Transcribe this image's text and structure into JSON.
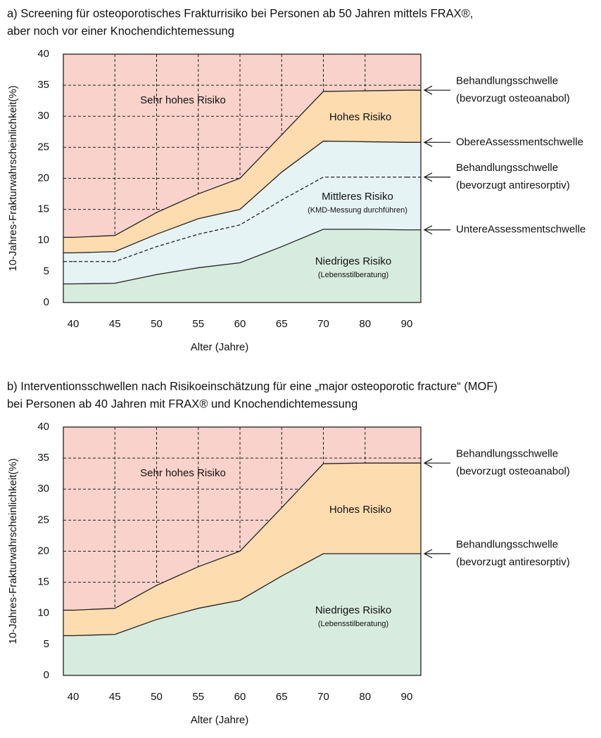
{
  "chart_data": [
    {
      "type": "area",
      "title": [
        "a) Screening für osteoporotisches Frakturrisiko bei Personen ab 50 Jahren mittels FRAX®,",
        "aber noch vor einer Knochendichtemessung"
      ],
      "ylabel": "10-Jahres-Frakturwahrscheinlichkeit(%)",
      "xlabel": "Alter (Jahre)",
      "categories": [
        "40",
        "45",
        "50",
        "55",
        "60",
        "65",
        "70",
        "80",
        "90"
      ],
      "ylim": [
        0,
        40
      ],
      "yticks": [
        0,
        5,
        10,
        15,
        20,
        25,
        30,
        35,
        40
      ],
      "grid": true,
      "background": "#f9d2cb",
      "series": [
        {
          "name": [
            "Behandlungsschwelle",
            "(bevorzugt osteoanabol)"
          ],
          "color": "#222",
          "fill": "#fddcb0",
          "dashed": false,
          "values": [
            10.5,
            10.8,
            14.5,
            17.5,
            20,
            27,
            34,
            34.1,
            34.2
          ]
        },
        {
          "name": [
            "ObereAssessmentschwelle"
          ],
          "color": "#222",
          "fill": "#e6f3f5",
          "dashed": false,
          "values": [
            8,
            8.2,
            11,
            13.5,
            15,
            21,
            26,
            25.9,
            25.8
          ]
        },
        {
          "name": [
            "Behandlungsschwelle",
            "(bevorzugt antiresorptiv)"
          ],
          "color": "#222",
          "fill": null,
          "dashed": true,
          "values": [
            6.6,
            6.6,
            9,
            11,
            12.5,
            16.5,
            20.2,
            20.2,
            20.2
          ]
        },
        {
          "name": [
            "UntereAssessmentschwelle"
          ],
          "color": "#222",
          "fill": "#d8ebdf",
          "dashed": false,
          "values": [
            3,
            3.1,
            4.5,
            5.6,
            6.4,
            9,
            11.8,
            11.8,
            11.7
          ]
        }
      ],
      "regions": [
        {
          "label": "Sehr hohes Risiko"
        },
        {
          "label": "Hohes Risiko"
        },
        {
          "label": "Mittleres Risiko",
          "sublabel": "(KMD-Messung durchführen)"
        },
        {
          "label": "Niedriges Risiko",
          "sublabel": "(Lebensstilberatung)"
        }
      ]
    },
    {
      "type": "area",
      "title": [
        "b) Interventionsschwellen nach Risikoeinschätzung für eine „major osteoporotic fracture“ (MOF)",
        "bei Personen ab 40 Jahren mit FRAX® und Knochendichtemessung"
      ],
      "ylabel": "10-Jahres-Frakturwahrscheinlichkeit(%)",
      "xlabel": "Alter (Jahre)",
      "categories": [
        "40",
        "45",
        "50",
        "55",
        "60",
        "65",
        "70",
        "80",
        "90"
      ],
      "ylim": [
        0,
        40
      ],
      "yticks": [
        0,
        5,
        10,
        15,
        20,
        25,
        30,
        35,
        40
      ],
      "grid": true,
      "background": "#f9d2cb",
      "series": [
        {
          "name": [
            "Behandlungsschwelle",
            "(bevorzugt osteoanabol)"
          ],
          "color": "#222",
          "fill": "#fddcb0",
          "dashed": false,
          "values": [
            10.5,
            10.8,
            14.5,
            17.5,
            20,
            27,
            34.1,
            34.2,
            34.2
          ]
        },
        {
          "name": [
            "Behandlungsschwelle",
            "(bevorzugt antiresorptiv)"
          ],
          "color": "#222",
          "fill": "#d8ebdf",
          "dashed": false,
          "values": [
            6.4,
            6.6,
            9,
            10.8,
            12.1,
            16,
            19.6,
            19.6,
            19.6
          ]
        }
      ],
      "regions": [
        {
          "label": "Sehr hohes Risiko"
        },
        {
          "label": "Hohes Risiko"
        },
        {
          "label": "Niedriges Risiko",
          "sublabel": "(Lebensstilberatung)"
        }
      ]
    }
  ]
}
